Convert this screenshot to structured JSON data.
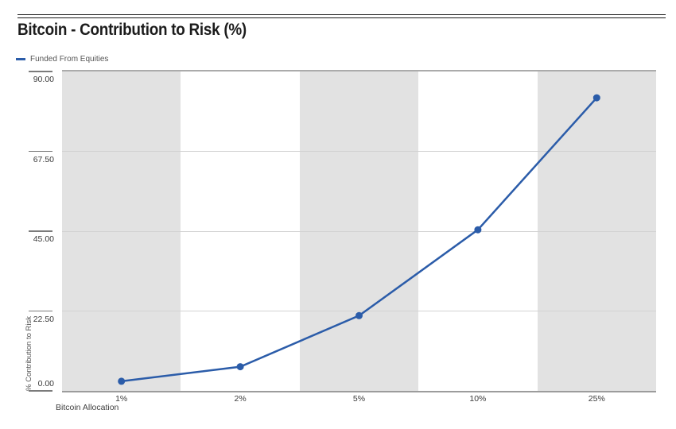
{
  "header": {
    "title": "Bitcoin - Contribution to Risk (%)"
  },
  "chart_data": {
    "type": "line",
    "title": "Bitcoin - Contribution to Risk (%)",
    "categories": [
      "1%",
      "2%",
      "5%",
      "10%",
      "25%"
    ],
    "series": [
      {
        "name": "Funded From Equities",
        "color": "#2b5ca9",
        "values": [
          2.7,
          6.8,
          21.2,
          45.4,
          82.6
        ]
      }
    ],
    "xlabel": "Bitcoin Allocation",
    "ylabel": "% Contribution to Risk",
    "ylim": [
      0,
      90
    ],
    "yticks": [
      0,
      22.5,
      45,
      67.5,
      90
    ],
    "ytick_labels": [
      "0.00",
      "22.50",
      "45.00",
      "67.50",
      "90.00"
    ],
    "grid": true,
    "legend_position": "top-left",
    "band_colors": [
      "#e2e2e2",
      "#ffffff"
    ],
    "colors": {
      "line": "#2b5ca9",
      "marker": "#2b5ca9",
      "band_gray": "#e2e2e2",
      "gridline": "#d2d2d2",
      "axis_line": "#9c9c9c",
      "plot_top_border": "#ababab",
      "tick": "#7b7b7b",
      "title_text": "#1c1c1c",
      "label_text": "#3a3a3a"
    }
  }
}
